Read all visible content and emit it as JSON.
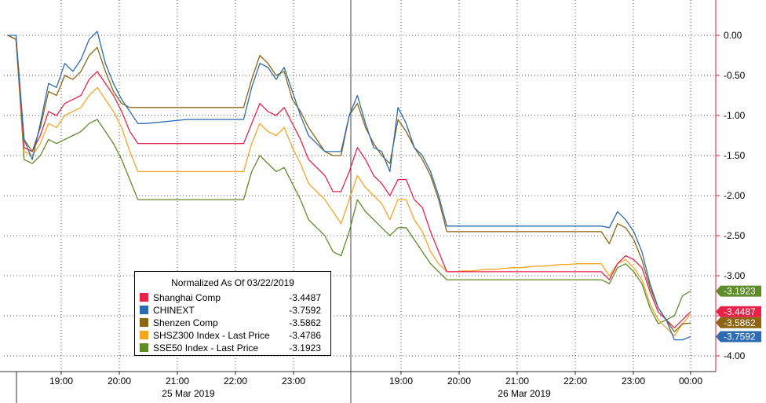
{
  "chart_data": {
    "type": "line",
    "y_axis": {
      "position": "right",
      "ylim": [
        -4.1,
        0.25
      ],
      "ticks": [
        0.0,
        -0.5,
        -1.0,
        -1.5,
        -2.0,
        -2.5,
        -3.0,
        -3.5,
        -4.0
      ],
      "tick_labels": [
        "0.00",
        "-0.50",
        "-1.00",
        "-1.50",
        "-2.00",
        "-2.50",
        "-3.00",
        "-3.50",
        "-4.00"
      ]
    },
    "x_axis": {
      "time_ticks": [
        "19:00",
        "20:00",
        "21:00",
        "22:00",
        "23:00",
        "19:00",
        "20:00",
        "21:00",
        "22:00",
        "23:00",
        "00:00"
      ],
      "date_labels": [
        "25 Mar 2019",
        "26 Mar 2019"
      ]
    },
    "grid": true,
    "legend": {
      "title": "Normalized As Of 03/22/2019",
      "placement": "bottom-center"
    },
    "series": [
      {
        "name": "Shanghai Comp",
        "color": "#e8234a",
        "last": "-3.4487",
        "values": [
          0.0,
          -0.05,
          -1.4,
          -1.45,
          -1.25,
          -0.95,
          -1.0,
          -0.85,
          -0.8,
          -0.75,
          -0.55,
          -0.45,
          -0.6,
          -0.75,
          -0.95,
          -1.2,
          -1.35,
          -1.35,
          -1.35,
          -1.35,
          -1.35,
          -1.35,
          -1.35,
          -1.35,
          -1.35,
          -1.35,
          -1.35,
          -1.35,
          -1.35,
          -1.35,
          -1.1,
          -0.85,
          -0.95,
          -1.0,
          -0.9,
          -1.1,
          -1.3,
          -1.55,
          -1.65,
          -1.75,
          -1.95,
          -1.95,
          -1.7,
          -1.4,
          -1.55,
          -1.75,
          -1.85,
          -2.0,
          -1.8,
          -1.8,
          -2.05,
          -2.15,
          -2.45,
          -2.7,
          -2.95,
          -2.95,
          -2.95,
          -2.95,
          -2.95,
          -2.95,
          -2.95,
          -2.95,
          -2.95,
          -2.95,
          -2.95,
          -2.95,
          -2.95,
          -2.95,
          -2.95,
          -2.95,
          -2.95,
          -2.95,
          -2.95,
          -2.95,
          -3.05,
          -2.85,
          -2.75,
          -2.8,
          -2.9,
          -3.2,
          -3.45,
          -3.55,
          -3.65,
          -3.55,
          -3.45
        ]
      },
      {
        "name": "CHINEXT",
        "color": "#2c6bb0",
        "last": "-3.7592",
        "values": [
          0.0,
          0.0,
          -1.3,
          -1.55,
          -1.1,
          -0.6,
          -0.65,
          -0.35,
          -0.45,
          -0.3,
          -0.05,
          0.05,
          -0.35,
          -0.6,
          -0.8,
          -0.95,
          -1.1,
          -1.1,
          -1.09,
          -1.08,
          -1.07,
          -1.06,
          -1.05,
          -1.05,
          -1.05,
          -1.05,
          -1.05,
          -1.05,
          -1.05,
          -1.05,
          -0.65,
          -0.35,
          -0.4,
          -0.55,
          -0.4,
          -0.7,
          -1.0,
          -1.25,
          -1.35,
          -1.45,
          -1.45,
          -1.45,
          -1.0,
          -0.75,
          -1.1,
          -1.4,
          -1.45,
          -1.7,
          -0.9,
          -1.1,
          -1.4,
          -1.5,
          -1.7,
          -2.0,
          -2.38,
          -2.38,
          -2.38,
          -2.38,
          -2.38,
          -2.38,
          -2.38,
          -2.38,
          -2.38,
          -2.38,
          -2.38,
          -2.38,
          -2.38,
          -2.38,
          -2.38,
          -2.38,
          -2.38,
          -2.38,
          -2.38,
          -2.38,
          -2.4,
          -2.2,
          -2.3,
          -2.45,
          -2.7,
          -3.1,
          -3.4,
          -3.55,
          -3.8,
          -3.8,
          -3.76
        ]
      },
      {
        "name": "Shenzen Comp",
        "color": "#8c6412",
        "last": "-3.5862",
        "values": [
          0.0,
          -0.05,
          -1.3,
          -1.45,
          -1.15,
          -0.7,
          -0.75,
          -0.5,
          -0.55,
          -0.45,
          -0.25,
          -0.15,
          -0.45,
          -0.7,
          -0.85,
          -0.9,
          -0.9,
          -0.9,
          -0.9,
          -0.9,
          -0.9,
          -0.9,
          -0.9,
          -0.9,
          -0.9,
          -0.9,
          -0.9,
          -0.9,
          -0.9,
          -0.9,
          -0.55,
          -0.25,
          -0.35,
          -0.5,
          -0.45,
          -0.8,
          -0.95,
          -1.15,
          -1.3,
          -1.45,
          -1.5,
          -1.5,
          -1.0,
          -0.85,
          -1.15,
          -1.35,
          -1.5,
          -1.6,
          -1.05,
          -1.2,
          -1.4,
          -1.55,
          -1.75,
          -2.05,
          -2.45,
          -2.45,
          -2.45,
          -2.45,
          -2.45,
          -2.45,
          -2.45,
          -2.45,
          -2.45,
          -2.45,
          -2.45,
          -2.45,
          -2.45,
          -2.45,
          -2.45,
          -2.45,
          -2.45,
          -2.45,
          -2.45,
          -2.45,
          -2.6,
          -2.35,
          -2.4,
          -2.55,
          -2.8,
          -3.15,
          -3.4,
          -3.55,
          -3.7,
          -3.6,
          -3.59
        ]
      },
      {
        "name": "SHSZ300 Index - Last Price",
        "color": "#f5a623",
        "last": "-3.4786",
        "values": [
          0.0,
          -0.05,
          -1.45,
          -1.5,
          -1.35,
          -1.1,
          -1.15,
          -1.0,
          -0.95,
          -0.9,
          -0.75,
          -0.65,
          -0.8,
          -0.95,
          -1.15,
          -1.45,
          -1.7,
          -1.7,
          -1.7,
          -1.7,
          -1.7,
          -1.7,
          -1.7,
          -1.7,
          -1.7,
          -1.7,
          -1.7,
          -1.7,
          -1.7,
          -1.7,
          -1.35,
          -1.1,
          -1.2,
          -1.25,
          -1.15,
          -1.4,
          -1.6,
          -1.85,
          -1.95,
          -2.05,
          -2.2,
          -2.35,
          -2.05,
          -1.75,
          -1.9,
          -2.0,
          -2.1,
          -2.3,
          -2.05,
          -2.05,
          -2.3,
          -2.45,
          -2.7,
          -2.85,
          -2.95,
          -2.95,
          -2.94,
          -2.94,
          -2.93,
          -2.92,
          -2.92,
          -2.91,
          -2.9,
          -2.9,
          -2.89,
          -2.88,
          -2.88,
          -2.87,
          -2.86,
          -2.86,
          -2.85,
          -2.85,
          -2.85,
          -2.85,
          -3.0,
          -2.85,
          -2.8,
          -2.9,
          -3.05,
          -3.35,
          -3.55,
          -3.65,
          -3.75,
          -3.6,
          -3.48
        ]
      },
      {
        "name": "SSE50 Index - Last Price",
        "color": "#5e8c2a",
        "last": "-3.1923",
        "values": [
          0.0,
          -0.05,
          -1.55,
          -1.6,
          -1.5,
          -1.3,
          -1.35,
          -1.3,
          -1.25,
          -1.2,
          -1.1,
          -1.05,
          -1.2,
          -1.35,
          -1.55,
          -1.8,
          -2.05,
          -2.05,
          -2.05,
          -2.05,
          -2.05,
          -2.05,
          -2.05,
          -2.05,
          -2.05,
          -2.05,
          -2.05,
          -2.05,
          -2.05,
          -2.05,
          -1.7,
          -1.5,
          -1.6,
          -1.7,
          -1.65,
          -1.85,
          -2.05,
          -2.3,
          -2.4,
          -2.5,
          -2.7,
          -2.75,
          -2.45,
          -2.05,
          -2.2,
          -2.3,
          -2.4,
          -2.5,
          -2.4,
          -2.4,
          -2.55,
          -2.7,
          -2.85,
          -2.95,
          -3.05,
          -3.05,
          -3.05,
          -3.05,
          -3.05,
          -3.05,
          -3.05,
          -3.05,
          -3.05,
          -3.05,
          -3.05,
          -3.05,
          -3.05,
          -3.05,
          -3.05,
          -3.05,
          -3.05,
          -3.05,
          -3.05,
          -3.05,
          -3.1,
          -2.9,
          -2.85,
          -2.95,
          -3.1,
          -3.4,
          -3.6,
          -3.55,
          -3.5,
          -3.25,
          -3.19
        ]
      }
    ]
  }
}
